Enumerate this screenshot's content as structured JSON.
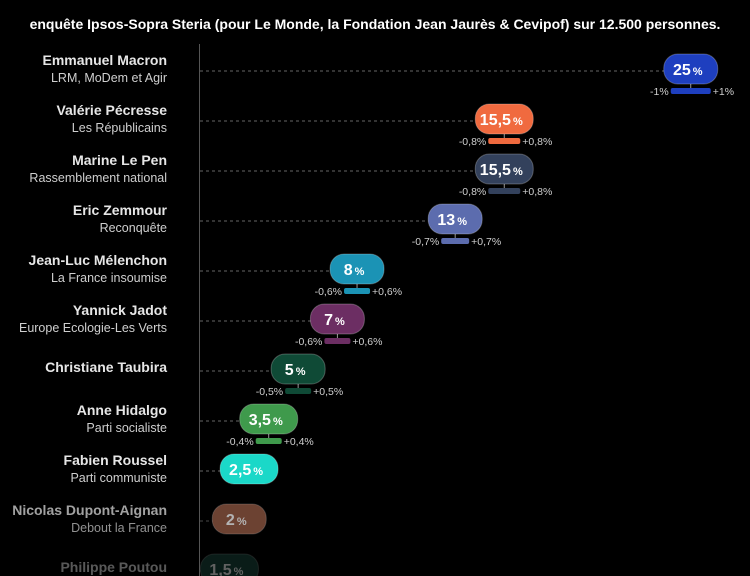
{
  "title": "enquête Ipsos-Sopra Steria (pour Le Monde, la Fondation Jean Jaurès & Cevipof) sur 12.500 personnes.",
  "chart_data": {
    "type": "scatter",
    "xlim": [
      0,
      27
    ],
    "unit": "%",
    "grid": "dashed leader lines",
    "candidates": [
      {
        "name": "Emmanuel Macron",
        "party": "LRM, MoDem et Agir",
        "value": 25,
        "label": "25",
        "err_minus": "-1%",
        "err_plus": "+1%",
        "margin": 1,
        "color": "#1e3fbf"
      },
      {
        "name": "Valérie Pécresse",
        "party": "Les Républicains",
        "value": 15.5,
        "label": "15,5",
        "err_minus": "-0,8%",
        "err_plus": "+0,8%",
        "margin": 0.8,
        "color": "#f06a3f"
      },
      {
        "name": "Marine Le Pen",
        "party": "Rassemblement national",
        "value": 15.5,
        "label": "15,5",
        "err_minus": "-0,8%",
        "err_plus": "+0,8%",
        "margin": 0.8,
        "color": "#33415c"
      },
      {
        "name": "Eric Zemmour",
        "party": "Reconquête",
        "value": 13,
        "label": "13",
        "err_minus": "-0,7%",
        "err_plus": "+0,7%",
        "margin": 0.7,
        "color": "#5c6cae"
      },
      {
        "name": "Jean-Luc Mélenchon",
        "party": "La France insoumise",
        "value": 8,
        "label": "8",
        "err_minus": "-0,6%",
        "err_plus": "+0,6%",
        "margin": 0.6,
        "color": "#1b93b5"
      },
      {
        "name": "Yannick Jadot",
        "party": "Europe Ecologie-Les Verts",
        "value": 7,
        "label": "7",
        "err_minus": "-0,6%",
        "err_plus": "+0,6%",
        "margin": 0.6,
        "color": "#6c2e63"
      },
      {
        "name": "Christiane Taubira",
        "party": "",
        "value": 5,
        "label": "5",
        "err_minus": "-0,5%",
        "err_plus": "+0,5%",
        "margin": 0.5,
        "color": "#0f4a36"
      },
      {
        "name": "Anne Hidalgo",
        "party": "Parti socialiste",
        "value": 3.5,
        "label": "3,5",
        "err_minus": "-0,4%",
        "err_plus": "+0,4%",
        "margin": 0.4,
        "color": "#3f9a4c"
      },
      {
        "name": "Fabien Roussel",
        "party": "Parti communiste",
        "value": 2.5,
        "label": "2,5",
        "err_minus": "",
        "err_plus": "",
        "margin": 0,
        "color": "#1ad8c8"
      },
      {
        "name": "Nicolas Dupont-Aignan",
        "party": "Debout la France",
        "value": 2,
        "label": "2",
        "err_minus": "",
        "err_plus": "",
        "margin": 0,
        "color": "#9b5e48"
      },
      {
        "name": "Philippe Poutou",
        "party": "",
        "value": 1.5,
        "label": "1,5",
        "err_minus": "",
        "err_plus": "",
        "margin": 0,
        "color": "#1c4a40"
      }
    ]
  }
}
